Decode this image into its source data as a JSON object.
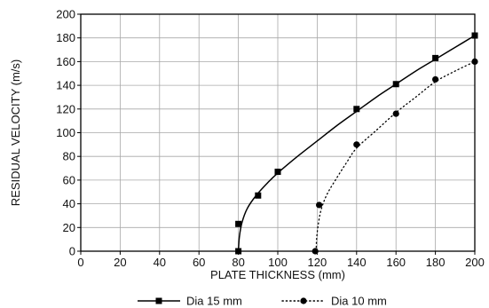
{
  "chart_data": {
    "type": "scatter",
    "title": "",
    "xlabel": "PLATE THICKNESS (mm)",
    "ylabel": "RESIDUAL VELOCITY  (m/s)",
    "xlim": [
      0,
      200
    ],
    "ylim": [
      0,
      200
    ],
    "xticks": [
      "0",
      "20",
      "40",
      "60",
      "80",
      "100",
      "120",
      "140",
      "160",
      "180",
      "200"
    ],
    "yticks": [
      "0",
      "20",
      "40",
      "60",
      "80",
      "100",
      "120",
      "140",
      "160",
      "180",
      "200"
    ],
    "grid": true,
    "legend_position": "bottom",
    "series": [
      {
        "name": "Dia 15 mm",
        "marker": "square",
        "line": "solid",
        "color": "#000000",
        "points": [
          [
            80,
            0
          ],
          [
            80,
            23
          ],
          [
            90,
            47
          ],
          [
            100,
            67
          ],
          [
            140,
            120
          ],
          [
            160,
            141
          ],
          [
            180,
            163
          ],
          [
            200,
            182
          ]
        ],
        "curve": [
          [
            80,
            0
          ],
          [
            80.5,
            12
          ],
          [
            81.8,
            24
          ],
          [
            84.5,
            36
          ],
          [
            89,
            47
          ],
          [
            95,
            58
          ],
          [
            100,
            66
          ],
          [
            110,
            80
          ],
          [
            120,
            93
          ],
          [
            130,
            106
          ],
          [
            140,
            118
          ],
          [
            150,
            130
          ],
          [
            160,
            141
          ],
          [
            170,
            152
          ],
          [
            180,
            162
          ],
          [
            190,
            172
          ],
          [
            200,
            182
          ]
        ]
      },
      {
        "name": "Dia 10 mm",
        "marker": "circle",
        "line": "dotted",
        "color": "#000000",
        "points": [
          [
            119,
            0
          ],
          [
            121,
            39
          ],
          [
            140,
            90
          ],
          [
            160,
            116
          ],
          [
            180,
            145
          ],
          [
            200,
            160
          ]
        ],
        "curve": [
          [
            119.5,
            0
          ],
          [
            119.7,
            10
          ],
          [
            120.5,
            22
          ],
          [
            122,
            35
          ],
          [
            125,
            48
          ],
          [
            130,
            62
          ],
          [
            135,
            75
          ],
          [
            140,
            87
          ],
          [
            150,
            102
          ],
          [
            160,
            117
          ],
          [
            170,
            130
          ],
          [
            180,
            143
          ],
          [
            190,
            152
          ],
          [
            200,
            160
          ]
        ]
      }
    ]
  }
}
